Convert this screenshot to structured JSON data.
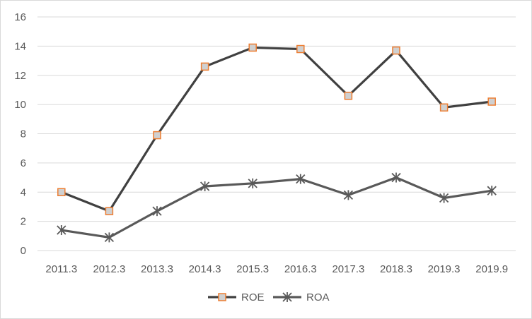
{
  "chart_data": {
    "type": "line",
    "title": "",
    "xlabel": "",
    "ylabel": "",
    "categories": [
      "2011.3",
      "2012.3",
      "2013.3",
      "2014.3",
      "2015.3",
      "2016.3",
      "2017.3",
      "2018.3",
      "2019.3",
      "2019.9"
    ],
    "ylim": [
      0,
      16
    ],
    "yticks": [
      "0",
      "2",
      "4",
      "6",
      "8",
      "10",
      "12",
      "14",
      "16"
    ],
    "grid": true,
    "legend_position": "bottom",
    "series": [
      {
        "name": "ROE",
        "values": [
          4.0,
          2.7,
          7.9,
          12.6,
          13.9,
          13.8,
          10.6,
          13.7,
          9.8,
          10.2
        ],
        "line_color": "#404040",
        "marker": "square",
        "marker_fill": "#d0d0d0",
        "marker_edge": "#ed7d31"
      },
      {
        "name": "ROA",
        "values": [
          1.4,
          0.9,
          2.7,
          4.4,
          4.6,
          4.9,
          3.8,
          5.0,
          3.6,
          4.1
        ],
        "line_color": "#595959",
        "marker": "star",
        "marker_color": "#595959"
      }
    ]
  }
}
